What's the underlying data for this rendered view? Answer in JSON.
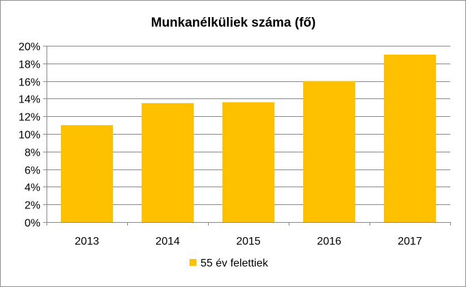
{
  "chart_data": {
    "type": "bar",
    "title": "Munkanélküliek száma (fő)",
    "categories": [
      "2013",
      "2014",
      "2015",
      "2016",
      "2017"
    ],
    "series": [
      {
        "name": "55 év felettiek",
        "values": [
          11.0,
          13.5,
          13.6,
          16.0,
          19.0
        ],
        "color": "#FFC000"
      }
    ],
    "y_tick_labels": [
      "0%",
      "2%",
      "4%",
      "6%",
      "8%",
      "10%",
      "12%",
      "14%",
      "16%",
      "18%",
      "20%"
    ],
    "ylim": [
      0,
      20
    ],
    "y_unit": "%",
    "grid": true,
    "gridline_color": "#878787",
    "legend_position": "bottom"
  }
}
